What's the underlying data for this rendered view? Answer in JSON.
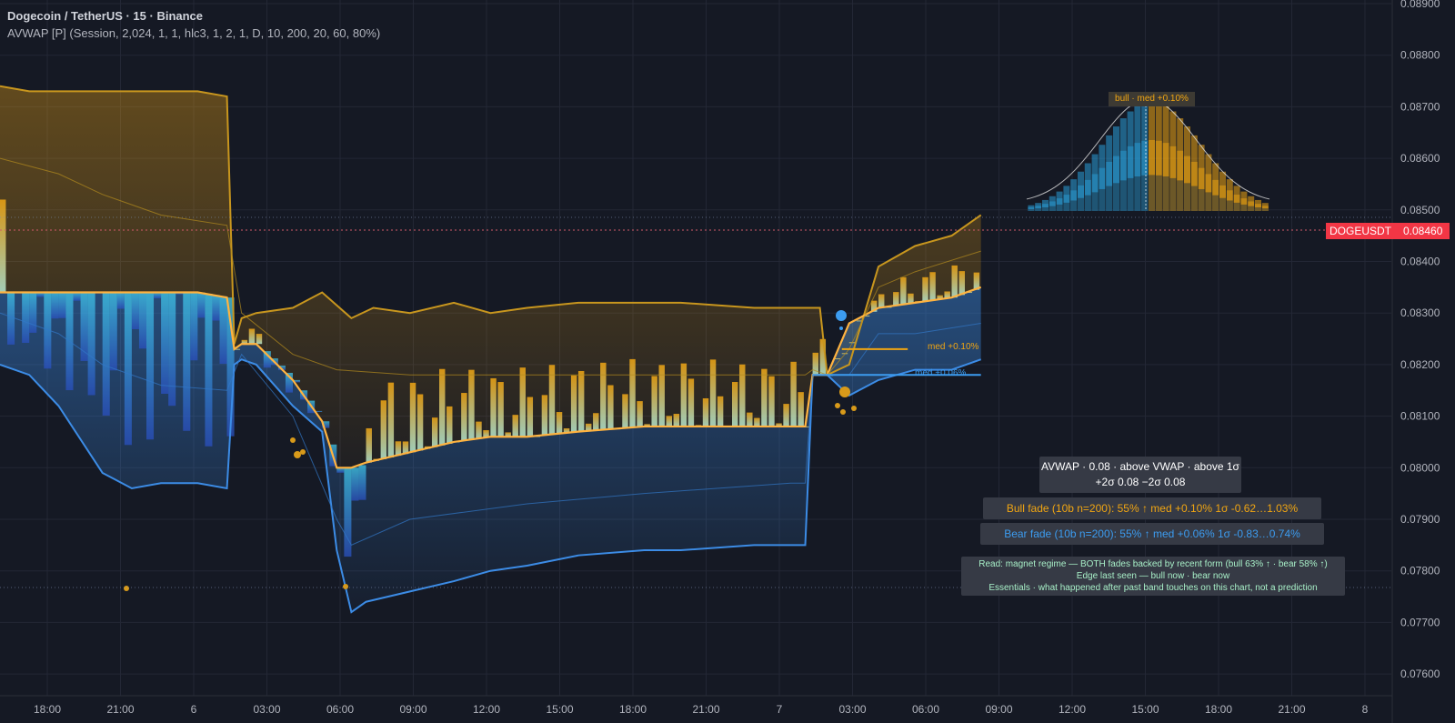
{
  "header": {
    "symbol": "Dogecoin / TetherUS · 15 · Binance",
    "indicator": "AVWAP [P] (Session, 2,024, 1, 1, hlc3, 1, 2, 1, D, 10, 200, 20, 60, 80%)"
  },
  "price_tag": {
    "ticker": "DOGEUSDT",
    "price": "0.08460"
  },
  "annotations": {
    "bull_profile": "bull · med +0.10%",
    "bull_med": "med +0.10%",
    "bear_med": "med +0.06%"
  },
  "info": {
    "main_line1": "AVWAP · 0.08 · above VWAP · above 1σ",
    "main_line2": "+2σ 0.08  −2σ 0.08",
    "bull": "Bull fade (10b n=200):  55% ↑  med +0.10%  1σ -0.62…1.03%",
    "bear": "Bear fade (10b n=200):  55% ↑  med +0.06%  1σ -0.83…0.74%",
    "read1": "Read: magnet regime — BOTH fades backed by recent form (bull 63% ↑ · bear 58% ↑)",
    "read2": "Edge last seen — bull now · bear now",
    "read3": "Essentials · what happened after past band touches on this chart, not a prediction"
  },
  "colors": {
    "background": "#151924",
    "bull": "#f0a512",
    "bear": "#3c9cf0",
    "price_tag": "#f23645",
    "text": "#d1d4dc"
  },
  "chart_data": {
    "type": "line",
    "title": "Dogecoin / TetherUS · 15 · Binance",
    "ylim": [
      0.0755,
      0.089
    ],
    "y_ticks": [
      "0.08900",
      "0.08800",
      "0.08700",
      "0.08600",
      "0.08500",
      "0.08400",
      "0.08300",
      "0.08200",
      "0.08100",
      "0.08000",
      "0.07900",
      "0.07800",
      "0.07700",
      "0.07600"
    ],
    "x_ticks": [
      "18:00",
      "21:00",
      "6",
      "03:00",
      "06:00",
      "09:00",
      "12:00",
      "15:00",
      "18:00",
      "21:00",
      "7",
      "03:00",
      "06:00",
      "09:00",
      "12:00",
      "15:00",
      "18:00",
      "21:00",
      "8"
    ],
    "grid": true,
    "last_price": 0.0846,
    "series": [
      {
        "name": "upper",
        "color": "#c8961e",
        "x": [
          0,
          4,
          8,
          14,
          18,
          22,
          27,
          31,
          32,
          33,
          35,
          40,
          44,
          48,
          51,
          56,
          62,
          67,
          72,
          79,
          88,
          93,
          103,
          108,
          112,
          113,
          116,
          120,
          125,
          130,
          134
        ],
        "values": [
          0.0874,
          0.0873,
          0.0873,
          0.0873,
          0.0873,
          0.0873,
          0.0873,
          0.0872,
          0.0824,
          0.0829,
          0.083,
          0.0831,
          0.0834,
          0.0829,
          0.0831,
          0.083,
          0.0832,
          0.083,
          0.0831,
          0.0832,
          0.0832,
          0.0832,
          0.0831,
          0.0831,
          0.0831,
          0.0818,
          0.082,
          0.0839,
          0.0843,
          0.0845,
          0.0849
        ]
      },
      {
        "name": "lower",
        "color": "#3c8ce6",
        "x": [
          0,
          4,
          8,
          14,
          18,
          22,
          27,
          31,
          32,
          33,
          35,
          40,
          44,
          46,
          48,
          50,
          56,
          62,
          67,
          72,
          79,
          88,
          93,
          103,
          108,
          110,
          111,
          113,
          116,
          120,
          125,
          130,
          134
        ],
        "values": [
          0.082,
          0.0818,
          0.0812,
          0.0799,
          0.0796,
          0.0797,
          0.0797,
          0.0796,
          0.082,
          0.0821,
          0.082,
          0.0812,
          0.0807,
          0.0784,
          0.0772,
          0.0774,
          0.0776,
          0.0778,
          0.078,
          0.0781,
          0.0783,
          0.0784,
          0.0784,
          0.0785,
          0.0785,
          0.0785,
          0.0818,
          0.0818,
          0.0814,
          0.0817,
          0.0819,
          0.0819,
          0.0821
        ]
      },
      {
        "name": "vwap",
        "color": "#ffb340",
        "x": [
          0,
          4,
          8,
          14,
          18,
          22,
          27,
          31,
          32,
          33,
          35,
          40,
          44,
          46,
          48,
          50,
          56,
          62,
          67,
          72,
          79,
          88,
          93,
          103,
          108,
          110,
          111,
          113,
          116,
          120,
          125,
          130,
          134
        ],
        "values": [
          0.0834,
          0.0834,
          0.0834,
          0.0834,
          0.0834,
          0.0834,
          0.0834,
          0.0833,
          0.0823,
          0.0824,
          0.0824,
          0.0817,
          0.0809,
          0.08,
          0.08,
          0.0801,
          0.0803,
          0.0805,
          0.0806,
          0.0806,
          0.0807,
          0.0808,
          0.0808,
          0.0808,
          0.0808,
          0.0808,
          0.0818,
          0.0818,
          0.0828,
          0.0831,
          0.0832,
          0.0833,
          0.0835
        ]
      },
      {
        "name": "mid_upper",
        "color": "#b48c1e",
        "x": [
          0,
          8,
          14,
          22,
          31,
          33,
          40,
          46,
          56,
          72,
          88,
          108,
          110,
          111,
          113,
          116,
          120,
          125,
          134
        ],
        "values": [
          0.086,
          0.0857,
          0.0853,
          0.0849,
          0.0847,
          0.083,
          0.0822,
          0.0819,
          0.0818,
          0.0818,
          0.0818,
          0.0818,
          0.0818,
          0.0819,
          0.0818,
          0.0823,
          0.0835,
          0.0838,
          0.0842
        ]
      },
      {
        "name": "mid_lower",
        "color": "#3278c8",
        "x": [
          0,
          8,
          14,
          22,
          31,
          33,
          40,
          46,
          48,
          56,
          72,
          88,
          108,
          110,
          111,
          113,
          116,
          120,
          125,
          134
        ],
        "values": [
          0.083,
          0.0826,
          0.082,
          0.0816,
          0.0815,
          0.0822,
          0.081,
          0.079,
          0.0785,
          0.079,
          0.0793,
          0.0795,
          0.0797,
          0.0797,
          0.0818,
          0.0818,
          0.0818,
          0.0826,
          0.0826,
          0.0828
        ]
      },
      {
        "name": "bear_med",
        "color": "#3c9cf0",
        "x": [
          111,
          113,
          116,
          120,
          125,
          130,
          134
        ],
        "values": [
          0.0818,
          0.0818,
          0.0818,
          0.0818,
          0.0818,
          0.0818,
          0.0818
        ]
      },
      {
        "name": "bull_med",
        "color": "#f0a512",
        "x": [
          115,
          120,
          124
        ],
        "values": [
          0.0823,
          0.0823,
          0.0823
        ]
      }
    ]
  }
}
